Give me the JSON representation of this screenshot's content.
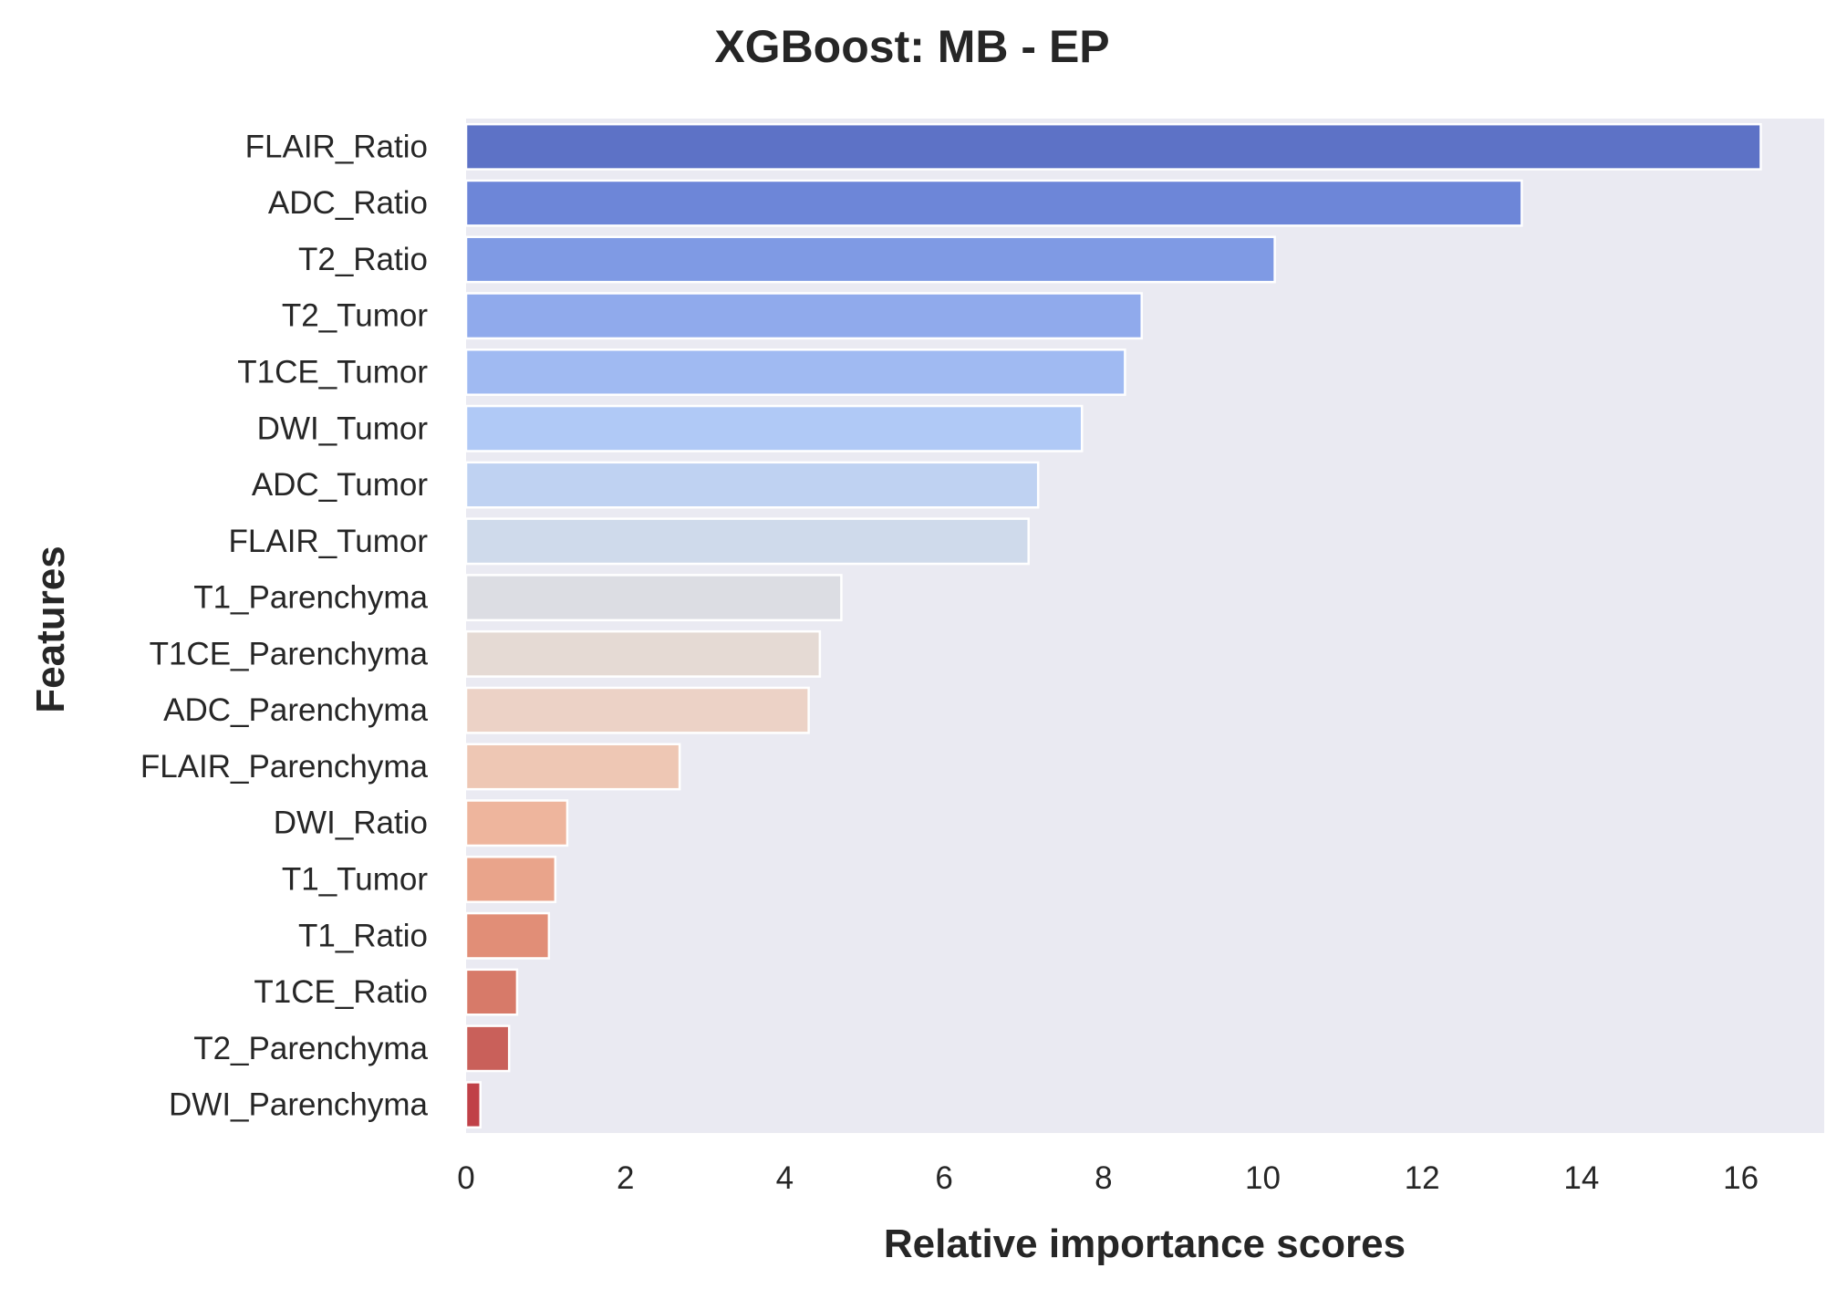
{
  "chart_data": {
    "type": "bar",
    "orientation": "horizontal",
    "title": "XGBoost: MB - EP",
    "xlabel": "Relative importance scores",
    "ylabel": "Features",
    "xlim": [
      0,
      17
    ],
    "xticks": [
      "0",
      "2",
      "4",
      "6",
      "8",
      "10",
      "12",
      "14",
      "16"
    ],
    "grid": false,
    "legend": "none",
    "background": "#eaeaf2",
    "categories": [
      "FLAIR_Ratio",
      "ADC_Ratio",
      "T2_Ratio",
      "T2_Tumor",
      "T1CE_Tumor",
      "DWI_Tumor",
      "ADC_Tumor",
      "FLAIR_Tumor",
      "T1_Parenchyma",
      "T1CE_Parenchyma",
      "ADC_Parenchyma",
      "FLAIR_Parenchyma",
      "DWI_Ratio",
      "T1_Tumor",
      "T1_Ratio",
      "T1CE_Ratio",
      "T2_Parenchyma",
      "DWI_Parenchyma"
    ],
    "values": [
      16.25,
      13.25,
      10.15,
      8.48,
      8.27,
      7.73,
      7.18,
      7.06,
      4.71,
      4.44,
      4.3,
      2.68,
      1.27,
      1.12,
      1.04,
      0.64,
      0.54,
      0.18
    ],
    "colors": [
      "#5d72c6",
      "#6d86d8",
      "#7f9ae4",
      "#90aaec",
      "#a0baf2",
      "#b0c9f6",
      "#bfd2f2",
      "#cfdaeb",
      "#dcdde3",
      "#e5dad4",
      "#ecd2c6",
      "#eec7b4",
      "#eeb59d",
      "#e9a48b",
      "#e18e77",
      "#d77a69",
      "#c9605a",
      "#c04148"
    ]
  }
}
